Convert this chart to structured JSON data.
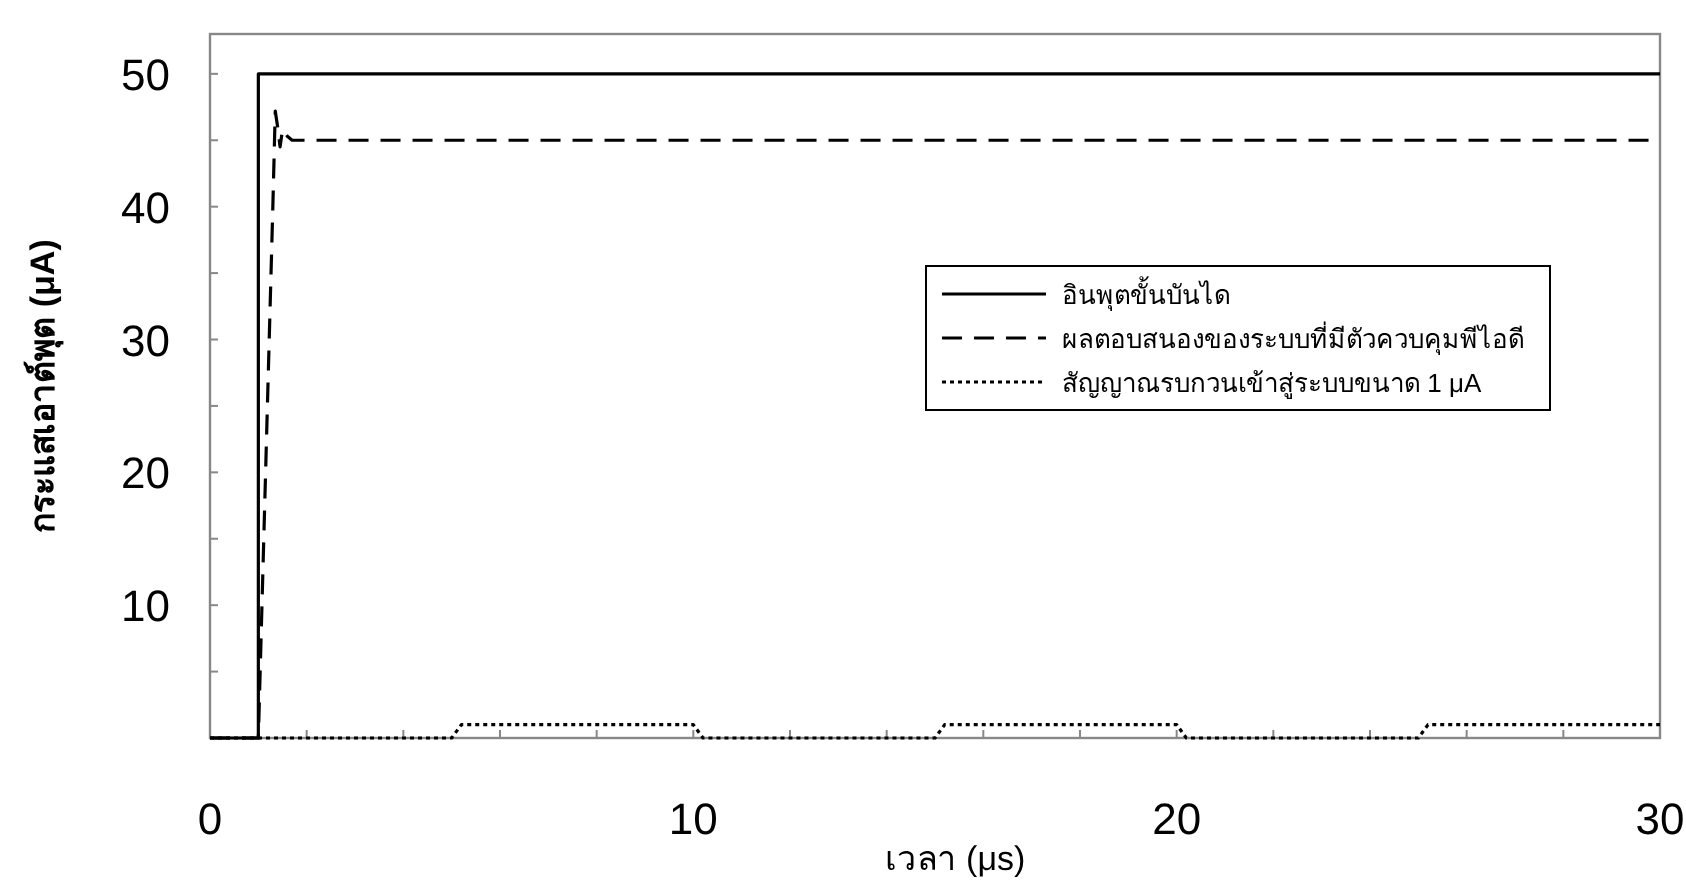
{
  "chart_data": {
    "type": "line",
    "xlabel": "เวลา (μs)",
    "ylabel": "กระแสเอาต์พุต (μA)",
    "xlim": [
      0,
      30
    ],
    "ylim": [
      0,
      53
    ],
    "xticks": [
      0,
      {
        "value": 2,
        "label": null
      },
      {
        "value": 4,
        "label": null
      },
      {
        "value": 6,
        "label": null
      },
      {
        "value": 8,
        "label": null
      },
      10,
      {
        "value": 12,
        "label": null
      },
      {
        "value": 14,
        "label": null
      },
      {
        "value": 16,
        "label": null
      },
      {
        "value": 18,
        "label": null
      },
      20,
      {
        "value": 22,
        "label": null
      },
      {
        "value": 24,
        "label": null
      },
      {
        "value": 26,
        "label": null
      },
      {
        "value": 28,
        "label": null
      },
      30
    ],
    "yticks": [
      {
        "value": 5,
        "label": null
      },
      10,
      {
        "value": 15,
        "label": null
      },
      20,
      {
        "value": 25,
        "label": null
      },
      30,
      {
        "value": 35,
        "label": null
      },
      40,
      {
        "value": 45,
        "label": null
      },
      50
    ],
    "grid": false,
    "legend": "right",
    "marker": "none",
    "series": [
      {
        "name": "อินพุตขั้นบันได",
        "color": "#000000",
        "line_style": "solid",
        "x": [
          0,
          1,
          1,
          30
        ],
        "values": [
          0,
          0,
          50,
          50
        ]
      },
      {
        "name": "ผลตอบสนองของระบบที่มีตัวควบคุมพีไอดี",
        "color": "#000000",
        "line_style": "dashed",
        "x": [
          0,
          1,
          1.3,
          1.35,
          1.4,
          1.45,
          1.5,
          1.6,
          1.7,
          30
        ],
        "values": [
          0,
          0,
          40,
          47.2,
          46,
          44.5,
          45.8,
          45.3,
          45,
          45
        ]
      },
      {
        "name": "สัญญาณรบกวนเข้าสู่ระบบขนาด 1 μA",
        "color": "#000000",
        "line_style": "dotted",
        "x": [
          0,
          5,
          5.2,
          10,
          10.2,
          15,
          15.2,
          20,
          20.2,
          25,
          25.2,
          30
        ],
        "values": [
          0,
          0,
          1,
          1,
          0,
          0,
          1,
          1,
          0,
          0,
          1,
          1
        ]
      }
    ]
  }
}
